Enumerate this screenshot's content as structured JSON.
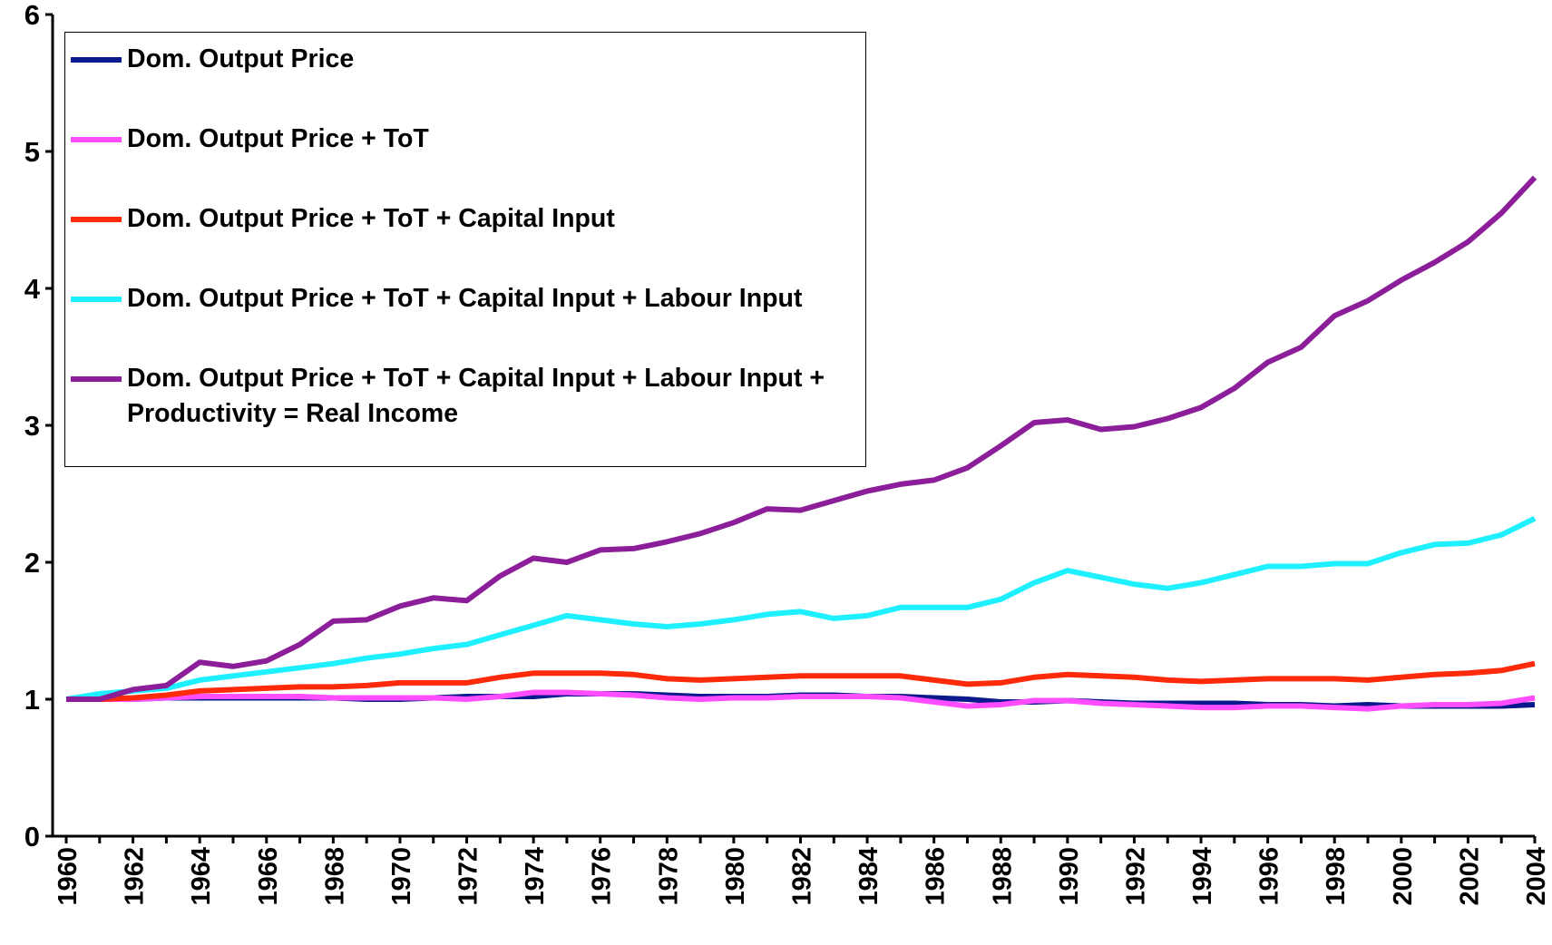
{
  "chart_data": {
    "type": "line",
    "x": [
      1960,
      1961,
      1962,
      1963,
      1964,
      1965,
      1966,
      1967,
      1968,
      1969,
      1970,
      1971,
      1972,
      1973,
      1974,
      1975,
      1976,
      1977,
      1978,
      1979,
      1980,
      1981,
      1982,
      1983,
      1984,
      1985,
      1986,
      1987,
      1988,
      1989,
      1990,
      1991,
      1992,
      1993,
      1994,
      1995,
      1996,
      1997,
      1998,
      1999,
      2000,
      2001,
      2002,
      2003,
      2004
    ],
    "xlim": [
      1960,
      2004
    ],
    "xticks": [
      1960,
      1962,
      1964,
      1966,
      1968,
      1970,
      1972,
      1974,
      1976,
      1978,
      1980,
      1982,
      1984,
      1986,
      1988,
      1990,
      1992,
      1994,
      1996,
      1998,
      2000,
      2002,
      2004
    ],
    "ylim": [
      0,
      6
    ],
    "yticks": [
      0,
      1,
      2,
      3,
      4,
      5,
      6
    ],
    "legend": "upper left",
    "series": [
      {
        "name": "Dom. Output Price",
        "color": "#0a1a8c",
        "values": [
          1.0,
          1.0,
          1.0,
          1.01,
          1.01,
          1.01,
          1.01,
          1.01,
          1.01,
          1.0,
          1.0,
          1.01,
          1.02,
          1.02,
          1.02,
          1.04,
          1.04,
          1.04,
          1.03,
          1.02,
          1.02,
          1.02,
          1.03,
          1.03,
          1.02,
          1.02,
          1.01,
          1.0,
          0.98,
          0.98,
          0.99,
          0.98,
          0.97,
          0.97,
          0.97,
          0.97,
          0.96,
          0.96,
          0.95,
          0.96,
          0.95,
          0.95,
          0.95,
          0.95,
          0.96
        ]
      },
      {
        "name": "Dom. Output Price + ToT",
        "color": "#ff4dff",
        "values": [
          1.0,
          1.0,
          1.0,
          1.01,
          1.02,
          1.02,
          1.02,
          1.02,
          1.01,
          1.01,
          1.01,
          1.01,
          1.0,
          1.02,
          1.05,
          1.05,
          1.04,
          1.03,
          1.01,
          1.0,
          1.01,
          1.01,
          1.02,
          1.02,
          1.02,
          1.01,
          0.98,
          0.95,
          0.96,
          0.99,
          0.99,
          0.97,
          0.96,
          0.95,
          0.94,
          0.94,
          0.95,
          0.95,
          0.94,
          0.93,
          0.95,
          0.96,
          0.96,
          0.97,
          1.01
        ]
      },
      {
        "name": "Dom. Output Price + ToT + Capital Input",
        "color": "#ff2a0a",
        "values": [
          1.0,
          1.0,
          1.01,
          1.03,
          1.06,
          1.07,
          1.08,
          1.09,
          1.09,
          1.1,
          1.12,
          1.12,
          1.12,
          1.16,
          1.19,
          1.19,
          1.19,
          1.18,
          1.15,
          1.14,
          1.15,
          1.16,
          1.17,
          1.17,
          1.17,
          1.17,
          1.14,
          1.11,
          1.12,
          1.16,
          1.18,
          1.17,
          1.16,
          1.14,
          1.13,
          1.14,
          1.15,
          1.15,
          1.15,
          1.14,
          1.16,
          1.18,
          1.19,
          1.21,
          1.26
        ]
      },
      {
        "name": "Dom. Output Price + ToT + Capital Input + Labour Input",
        "color": "#1ff0ff",
        "values": [
          1.0,
          1.04,
          1.06,
          1.08,
          1.14,
          1.17,
          1.2,
          1.23,
          1.26,
          1.3,
          1.33,
          1.37,
          1.4,
          1.47,
          1.54,
          1.61,
          1.58,
          1.55,
          1.53,
          1.55,
          1.58,
          1.62,
          1.64,
          1.59,
          1.61,
          1.67,
          1.67,
          1.67,
          1.73,
          1.85,
          1.94,
          1.89,
          1.84,
          1.81,
          1.85,
          1.91,
          1.97,
          1.97,
          1.99,
          1.99,
          2.07,
          2.13,
          2.14,
          2.2,
          2.32
        ]
      },
      {
        "name": "Dom. Output Price + ToT + Capital Input + Labour Input + Productivity = Real Income",
        "color": "#8c1f99",
        "values": [
          1.0,
          1.0,
          1.07,
          1.1,
          1.27,
          1.24,
          1.28,
          1.4,
          1.57,
          1.58,
          1.68,
          1.74,
          1.72,
          1.9,
          2.03,
          2.0,
          2.09,
          2.1,
          2.15,
          2.21,
          2.29,
          2.39,
          2.38,
          2.45,
          2.52,
          2.57,
          2.6,
          2.69,
          2.85,
          3.02,
          3.04,
          2.97,
          2.99,
          3.05,
          3.13,
          3.27,
          3.46,
          3.57,
          3.8,
          3.91,
          4.06,
          4.19,
          4.34,
          4.55,
          4.81
        ]
      }
    ]
  }
}
